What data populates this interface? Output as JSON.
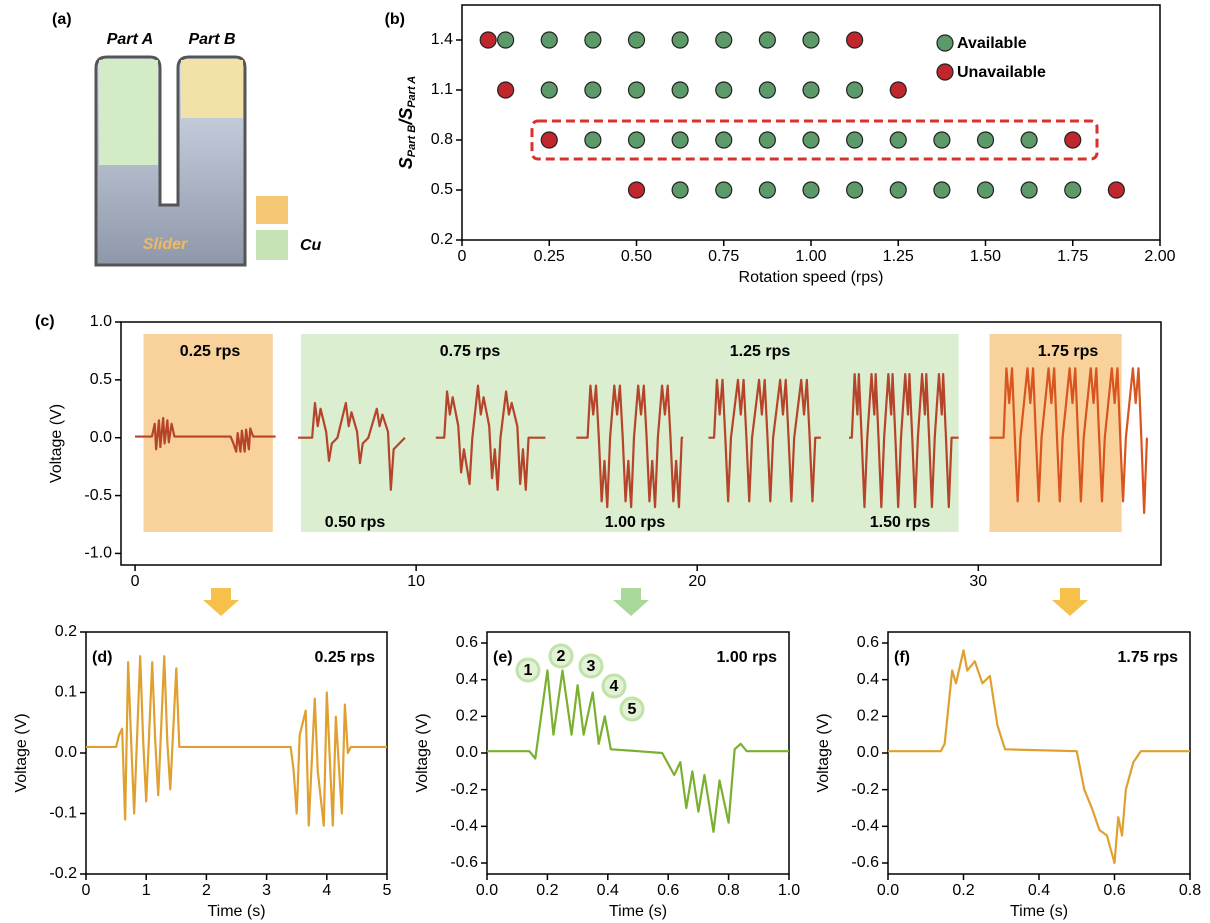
{
  "schematic": {
    "panel": "(a)",
    "part_a": "Part A",
    "part_b": "Part B",
    "slider": "Slider",
    "cu": "Cu"
  },
  "chart_data": [
    {
      "type": "scatter",
      "panel": "(b)",
      "x_label": "Rotation speed (rps)",
      "y_label": [
        "S",
        "Part B",
        "/S",
        "Part A"
      ],
      "xlim": [
        0,
        2
      ],
      "ylim": [
        0.2,
        1.61
      ],
      "xticks": [
        0,
        0.25,
        {
          "value": 0.5,
          "label": "0.50"
        },
        0.75,
        {
          "value": 1,
          "label": "1.00"
        },
        1.25,
        {
          "value": 1.5,
          "label": "1.50"
        },
        1.75,
        {
          "value": 2,
          "label": "2.00"
        }
      ],
      "yticks": [
        0.2,
        0.5,
        0.8,
        1.1,
        1.4
      ],
      "legend": "upper right",
      "series": [
        {
          "name": "Available",
          "color": "#5c9a6a",
          "x": [
            0.125,
            0.25,
            0.375,
            0.5,
            0.625,
            0.75,
            0.875,
            1.0,
            0.25,
            0.375,
            0.5,
            0.625,
            0.75,
            0.875,
            1.0,
            1.125,
            0.375,
            0.5,
            0.625,
            0.75,
            0.875,
            1.0,
            1.125,
            1.25,
            1.375,
            1.5,
            1.625,
            0.625,
            0.75,
            0.875,
            1.0,
            1.125,
            1.25,
            1.375,
            1.5,
            1.625,
            1.75
          ],
          "values": [
            1.4,
            1.4,
            1.4,
            1.4,
            1.4,
            1.4,
            1.4,
            1.4,
            1.1,
            1.1,
            1.1,
            1.1,
            1.1,
            1.1,
            1.1,
            1.1,
            0.8,
            0.8,
            0.8,
            0.8,
            0.8,
            0.8,
            0.8,
            0.8,
            0.8,
            0.8,
            0.8,
            0.5,
            0.5,
            0.5,
            0.5,
            0.5,
            0.5,
            0.5,
            0.5,
            0.5,
            0.5
          ]
        },
        {
          "name": "Unavailable",
          "color": "#c0272d",
          "x": [
            0.075,
            1.125,
            0.125,
            1.25,
            0.25,
            1.75,
            0.5,
            1.875
          ],
          "values": [
            1.4,
            1.4,
            1.1,
            1.1,
            0.8,
            0.8,
            0.5,
            0.5
          ]
        }
      ]
    },
    {
      "type": "line",
      "panel": "(c)",
      "y_label": "Voltage (V)",
      "xlim": [
        -0.5,
        36.5
      ],
      "ylim": [
        -1.1,
        1.0
      ],
      "xticks": [
        0,
        10,
        20,
        30
      ],
      "yticks": [
        {
          "value": -1,
          "label": "-1.0"
        },
        -0.5,
        {
          "value": 0,
          "label": "0.0"
        },
        0.5,
        {
          "value": 1,
          "label": "1.0"
        }
      ],
      "regions": [
        {
          "x0": 0.3,
          "x1": 4.9,
          "color": "#f6c27a"
        },
        {
          "x0": 5.9,
          "x1": 29.3,
          "color": "#cfe8c0"
        },
        {
          "x0": 30.4,
          "x1": 35.1,
          "color": "#f6c27a"
        }
      ],
      "annotations": [
        "0.25 rps",
        "0.75 rps",
        "1.25 rps",
        "1.75 rps",
        "0.50 rps",
        "1.00 rps",
        "1.50 rps"
      ],
      "series": [
        {
          "color": "#b5442a",
          "x": [
            0,
            0.6,
            0.7,
            0.75,
            0.85,
            0.9,
            1.0,
            1.05,
            1.15,
            1.2,
            1.3,
            1.4,
            3.4,
            3.5,
            3.6,
            3.65,
            3.75,
            3.8,
            3.9,
            3.95,
            4.05,
            4.1,
            4.2,
            5.0
          ],
          "values": [
            0.01,
            0.01,
            0.12,
            -0.1,
            0.15,
            -0.08,
            0.17,
            -0.05,
            0.15,
            -0.04,
            0.12,
            0.01,
            0.01,
            -0.05,
            -0.12,
            0.04,
            -0.12,
            0.06,
            -0.12,
            0.07,
            -0.1,
            0.08,
            0.01,
            0.01
          ]
        },
        {
          "color": "#b5442a",
          "x": [
            5.8,
            6.3,
            6.4,
            6.5,
            6.6,
            6.8,
            6.9,
            7.0,
            7.2,
            7.5,
            7.6,
            7.7,
            7.9,
            8.0,
            8.1,
            8.3,
            8.6,
            8.7,
            8.8,
            9.0,
            9.1,
            9.2,
            9.6
          ],
          "values": [
            0,
            0,
            0.3,
            0.1,
            0.25,
            0.05,
            -0.2,
            -0.05,
            0,
            0.3,
            0.1,
            0.22,
            0.05,
            -0.22,
            -0.05,
            0,
            0.25,
            0.1,
            0.2,
            0.05,
            -0.45,
            -0.1,
            0
          ]
        },
        {
          "color": "#b5442a",
          "x": [
            10.7,
            11.0,
            11.1,
            11.2,
            11.3,
            11.5,
            11.6,
            11.7,
            11.9,
            12.0,
            12.2,
            12.3,
            12.4,
            12.6,
            12.7,
            12.8,
            12.9,
            13.0,
            13.2,
            13.3,
            13.4,
            13.6,
            13.7,
            13.8,
            13.9,
            14.0,
            14.6
          ],
          "values": [
            0,
            0,
            0.4,
            0.2,
            0.35,
            0.1,
            -0.3,
            -0.1,
            -0.4,
            0,
            0.45,
            0.2,
            0.35,
            0.1,
            -0.35,
            -0.1,
            -0.45,
            0,
            0.4,
            0.2,
            0.3,
            0.1,
            -0.4,
            -0.1,
            -0.45,
            0,
            0
          ]
        },
        {
          "color": "#b5442a",
          "x": [
            15.7,
            16.1,
            16.2,
            16.3,
            16.4,
            16.5,
            16.6,
            16.7,
            16.8,
            16.9,
            17.05,
            17.15,
            17.25,
            17.35,
            17.45,
            17.55,
            17.65,
            17.75,
            17.9,
            18.0,
            18.1,
            18.2,
            18.3,
            18.4,
            18.5,
            18.6,
            18.75,
            18.85,
            18.95,
            19.05,
            19.15,
            19.25,
            19.35,
            19.45,
            19.5
          ],
          "values": [
            0,
            0,
            0.45,
            0.2,
            0.45,
            0,
            -0.55,
            -0.2,
            -0.6,
            0,
            0.45,
            0.2,
            0.45,
            0,
            -0.55,
            -0.2,
            -0.6,
            0,
            0.45,
            0.2,
            0.45,
            0,
            -0.55,
            -0.2,
            -0.6,
            0,
            0.45,
            0.2,
            0.45,
            0,
            -0.55,
            -0.2,
            -0.6,
            0,
            0
          ]
        },
        {
          "color": "#b5442a",
          "x": [
            20.4,
            20.6,
            20.7,
            20.8,
            20.9,
            21.0,
            21.1,
            21.2,
            21.45,
            21.55,
            21.65,
            21.75,
            21.85,
            21.95,
            22.2,
            22.3,
            22.4,
            22.5,
            22.6,
            22.7,
            22.95,
            23.05,
            23.15,
            23.25,
            23.35,
            23.45,
            23.7,
            23.8,
            23.9,
            24.0,
            24.1,
            24.2,
            24.4
          ],
          "values": [
            0,
            0,
            0.5,
            0.2,
            0.5,
            0,
            -0.55,
            0,
            0.5,
            0.2,
            0.5,
            0,
            -0.55,
            0,
            0.5,
            0.2,
            0.5,
            0,
            -0.55,
            0,
            0.5,
            0.2,
            0.5,
            0,
            -0.55,
            0,
            0.5,
            0.2,
            0.5,
            0,
            -0.55,
            0,
            0
          ]
        },
        {
          "color": "#b5442a",
          "x": [
            25.4,
            25.5,
            25.6,
            25.7,
            25.75,
            25.85,
            25.95,
            26.05,
            26.2,
            26.3,
            26.35,
            26.45,
            26.55,
            26.65,
            26.8,
            26.9,
            26.95,
            27.05,
            27.15,
            27.25,
            27.4,
            27.5,
            27.55,
            27.65,
            27.75,
            27.85,
            28.0,
            28.1,
            28.15,
            28.25,
            28.35,
            28.45,
            28.6,
            28.7,
            28.75,
            28.85,
            28.95,
            29.05,
            29.3
          ],
          "values": [
            0,
            0,
            0.55,
            0.2,
            0.55,
            0,
            -0.6,
            0,
            0.55,
            0.2,
            0.55,
            0,
            -0.6,
            0,
            0.55,
            0.2,
            0.55,
            0,
            -0.6,
            0,
            0.55,
            0.2,
            0.55,
            0,
            -0.6,
            0,
            0.55,
            0.2,
            0.55,
            0,
            -0.6,
            0,
            0.55,
            0.2,
            0.55,
            0,
            -0.6,
            0,
            0
          ]
        },
        {
          "color": "#d9541e",
          "x": [
            30.4,
            30.9,
            31.0,
            31.1,
            31.2,
            31.3,
            31.4,
            31.5,
            31.75,
            31.85,
            31.95,
            32.05,
            32.15,
            32.25,
            32.5,
            32.6,
            32.7,
            32.8,
            32.9,
            33.0,
            33.25,
            33.35,
            33.45,
            33.55,
            33.65,
            33.75,
            34.0,
            34.1,
            34.2,
            34.3,
            34.4,
            34.5,
            34.75,
            34.85,
            34.95,
            35.05,
            35.15,
            35.25,
            35.5,
            35.6,
            35.7,
            35.8,
            35.9,
            36.0
          ],
          "values": [
            0,
            0,
            0.6,
            0.3,
            0.6,
            0,
            -0.55,
            0,
            0.6,
            0.3,
            0.6,
            0,
            -0.55,
            0,
            0.6,
            0.3,
            0.6,
            0,
            -0.55,
            0,
            0.6,
            0.3,
            0.6,
            0,
            -0.55,
            0,
            0.6,
            0.3,
            0.6,
            0,
            -0.55,
            0,
            0.6,
            0.3,
            0.6,
            0,
            -0.55,
            0,
            0.6,
            0.3,
            0.6,
            0,
            -0.65,
            0
          ]
        }
      ]
    },
    {
      "type": "line",
      "panel": "(d)",
      "x_label": "Time (s)",
      "y_label": "Voltage (V)",
      "xlim": [
        0,
        5
      ],
      "ylim": [
        -0.2,
        0.2
      ],
      "xticks": [
        0,
        1,
        2,
        3,
        4,
        5
      ],
      "yticks": [
        -0.2,
        -0.1,
        {
          "value": 0,
          "label": "0.0"
        },
        0.1,
        0.2
      ],
      "annotations": [
        "0.25 rps"
      ],
      "series": [
        {
          "color": "#e0a030",
          "x": [
            0,
            0.5,
            0.55,
            0.6,
            0.65,
            0.7,
            0.75,
            0.8,
            0.9,
            0.95,
            1.0,
            1.1,
            1.15,
            1.2,
            1.3,
            1.35,
            1.4,
            1.5,
            1.55,
            3.4,
            3.45,
            3.5,
            3.55,
            3.65,
            3.7,
            3.8,
            3.85,
            3.95,
            4.0,
            4.1,
            4.15,
            4.25,
            4.3,
            4.35,
            4.4,
            5.0
          ],
          "values": [
            0.01,
            0.01,
            0.03,
            0.04,
            -0.11,
            0.15,
            0.02,
            -0.1,
            0.16,
            0.02,
            -0.08,
            0.15,
            0.02,
            -0.07,
            0.16,
            0.02,
            -0.06,
            0.14,
            0.01,
            0.01,
            -0.03,
            -0.1,
            0.03,
            0.07,
            -0.12,
            0.09,
            -0.03,
            -0.12,
            0.1,
            -0.12,
            0.06,
            -0.1,
            0.08,
            0.0,
            0.01,
            0.01
          ]
        }
      ]
    },
    {
      "type": "line",
      "panel": "(e)",
      "x_label": "Time (s)",
      "y_label": "Voltage (V)",
      "xlim": [
        0,
        1
      ],
      "ylim": [
        -0.66,
        0.66
      ],
      "xticks": [
        {
          "value": 0,
          "label": "0.0"
        },
        0.2,
        0.4,
        0.6,
        0.8,
        {
          "value": 1,
          "label": "1.0"
        }
      ],
      "yticks": [
        -0.6,
        -0.4,
        -0.2,
        {
          "value": 0,
          "label": "0.0"
        },
        0.2,
        0.4,
        0.6
      ],
      "annotations": [
        "1.00 rps"
      ],
      "markers": [
        "1",
        "2",
        "3",
        "4",
        "5"
      ],
      "series": [
        {
          "color": "#7ab030",
          "x": [
            0,
            0.14,
            0.16,
            0.2,
            0.22,
            0.25,
            0.28,
            0.3,
            0.32,
            0.35,
            0.37,
            0.39,
            0.41,
            0.5,
            0.58,
            0.62,
            0.64,
            0.66,
            0.68,
            0.7,
            0.72,
            0.75,
            0.77,
            0.8,
            0.82,
            0.84,
            0.86,
            1.0
          ],
          "values": [
            0.01,
            0.01,
            -0.03,
            0.45,
            0.1,
            0.45,
            0.1,
            0.37,
            0.1,
            0.33,
            0.05,
            0.2,
            0.02,
            0.01,
            0.0,
            -0.12,
            -0.05,
            -0.3,
            -0.1,
            -0.32,
            -0.12,
            -0.43,
            -0.15,
            -0.38,
            0.02,
            0.05,
            0.01,
            0.01
          ]
        }
      ]
    },
    {
      "type": "line",
      "panel": "(f)",
      "x_label": "Time (s)",
      "y_label": "Voltage (V)",
      "xlim": [
        0,
        0.8
      ],
      "ylim": [
        -0.66,
        0.66
      ],
      "xticks": [
        {
          "value": 0,
          "label": "0.0"
        },
        0.2,
        0.4,
        0.6,
        0.8
      ],
      "yticks": [
        -0.6,
        -0.4,
        -0.2,
        {
          "value": 0,
          "label": "0.0"
        },
        0.2,
        0.4,
        0.6
      ],
      "annotations": [
        "1.75 rps"
      ],
      "series": [
        {
          "color": "#e0a030",
          "x": [
            0,
            0.14,
            0.15,
            0.17,
            0.18,
            0.2,
            0.21,
            0.23,
            0.25,
            0.27,
            0.29,
            0.31,
            0.5,
            0.52,
            0.54,
            0.56,
            0.58,
            0.6,
            0.61,
            0.62,
            0.63,
            0.65,
            0.67,
            0.8
          ],
          "values": [
            0.01,
            0.01,
            0.05,
            0.45,
            0.38,
            0.56,
            0.45,
            0.5,
            0.38,
            0.42,
            0.15,
            0.02,
            0.01,
            -0.2,
            -0.3,
            -0.42,
            -0.45,
            -0.6,
            -0.35,
            -0.45,
            -0.2,
            -0.05,
            0.01,
            0.01
          ]
        }
      ]
    }
  ]
}
